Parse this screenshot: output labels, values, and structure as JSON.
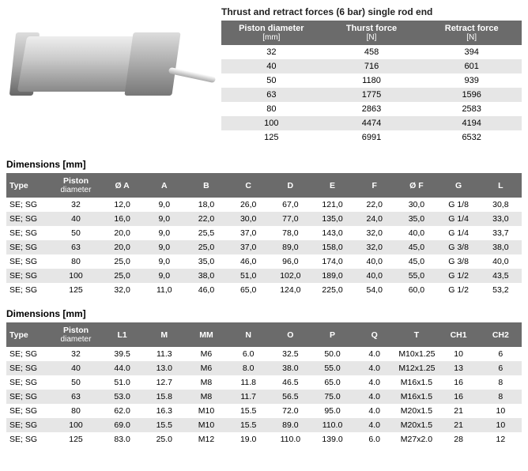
{
  "forces": {
    "title": "Thrust and retract forces (6 bar) single rod end",
    "headers": [
      {
        "label": "Piston diameter",
        "unit": "[mm]"
      },
      {
        "label": "Thurst force",
        "unit": "[N]"
      },
      {
        "label": "Retract force",
        "unit": "[N]"
      }
    ],
    "rows": [
      [
        "32",
        "458",
        "394"
      ],
      [
        "40",
        "716",
        "601"
      ],
      [
        "50",
        "1180",
        "939"
      ],
      [
        "63",
        "1775",
        "1596"
      ],
      [
        "80",
        "2863",
        "2583"
      ],
      [
        "100",
        "4474",
        "4194"
      ],
      [
        "125",
        "6991",
        "6532"
      ]
    ]
  },
  "dim1": {
    "title": "Dimensions [mm]",
    "headers": [
      "Type",
      "Piston diameter",
      "Ø A",
      "A",
      "B",
      "C",
      "D",
      "E",
      "F",
      "Ø F",
      "G",
      "L"
    ],
    "rows": [
      [
        "SE; SG",
        "32",
        "12,0",
        "9,0",
        "18,0",
        "26,0",
        "67,0",
        "121,0",
        "22,0",
        "30,0",
        "G 1/8",
        "30,8"
      ],
      [
        "SE; SG",
        "40",
        "16,0",
        "9,0",
        "22,0",
        "30,0",
        "77,0",
        "135,0",
        "24,0",
        "35,0",
        "G 1/4",
        "33,0"
      ],
      [
        "SE; SG",
        "50",
        "20,0",
        "9,0",
        "25,5",
        "37,0",
        "78,0",
        "143,0",
        "32,0",
        "40,0",
        "G 1/4",
        "33,7"
      ],
      [
        "SE; SG",
        "63",
        "20,0",
        "9,0",
        "25,0",
        "37,0",
        "89,0",
        "158,0",
        "32,0",
        "45,0",
        "G 3/8",
        "38,0"
      ],
      [
        "SE; SG",
        "80",
        "25,0",
        "9,0",
        "35,0",
        "46,0",
        "96,0",
        "174,0",
        "40,0",
        "45,0",
        "G 3/8",
        "40,0"
      ],
      [
        "SE; SG",
        "100",
        "25,0",
        "9,0",
        "38,0",
        "51,0",
        "102,0",
        "189,0",
        "40,0",
        "55,0",
        "G 1/2",
        "43,5"
      ],
      [
        "SE; SG",
        "125",
        "32,0",
        "11,0",
        "46,0",
        "65,0",
        "124,0",
        "225,0",
        "54,0",
        "60,0",
        "G 1/2",
        "53,2"
      ]
    ]
  },
  "dim2": {
    "title": "Dimensions [mm]",
    "headers": [
      "Type",
      "Piston diameter",
      "L1",
      "M",
      "MM",
      "N",
      "O",
      "P",
      "Q",
      "T",
      "CH1",
      "CH2"
    ],
    "rows": [
      [
        "SE; SG",
        "32",
        "39.5",
        "11.3",
        "M6",
        "6.0",
        "32.5",
        "50.0",
        "4.0",
        "M10x1.25",
        "10",
        "6"
      ],
      [
        "SE; SG",
        "40",
        "44.0",
        "13.0",
        "M6",
        "8.0",
        "38.0",
        "55.0",
        "4.0",
        "M12x1.25",
        "13",
        "6"
      ],
      [
        "SE; SG",
        "50",
        "51.0",
        "12.7",
        "M8",
        "11.8",
        "46.5",
        "65.0",
        "4.0",
        "M16x1.5",
        "16",
        "8"
      ],
      [
        "SE; SG",
        "63",
        "53.0",
        "15.8",
        "M8",
        "11.7",
        "56.5",
        "75.0",
        "4.0",
        "M16x1.5",
        "16",
        "8"
      ],
      [
        "SE; SG",
        "80",
        "62.0",
        "16.3",
        "M10",
        "15.5",
        "72.0",
        "95.0",
        "4.0",
        "M20x1.5",
        "21",
        "10"
      ],
      [
        "SE; SG",
        "100",
        "69.0",
        "15.5",
        "M10",
        "15.5",
        "89.0",
        "110.0",
        "4.0",
        "M20x1.5",
        "21",
        "10"
      ],
      [
        "SE; SG",
        "125",
        "83.0",
        "25.0",
        "M12",
        "19.0",
        "110.0",
        "139.0",
        "6.0",
        "M27x2.0",
        "28",
        "12"
      ]
    ]
  },
  "colors": {
    "header_bg": "#6b6b6b",
    "alt_row": "#e6e6e6",
    "text": "#000000"
  }
}
